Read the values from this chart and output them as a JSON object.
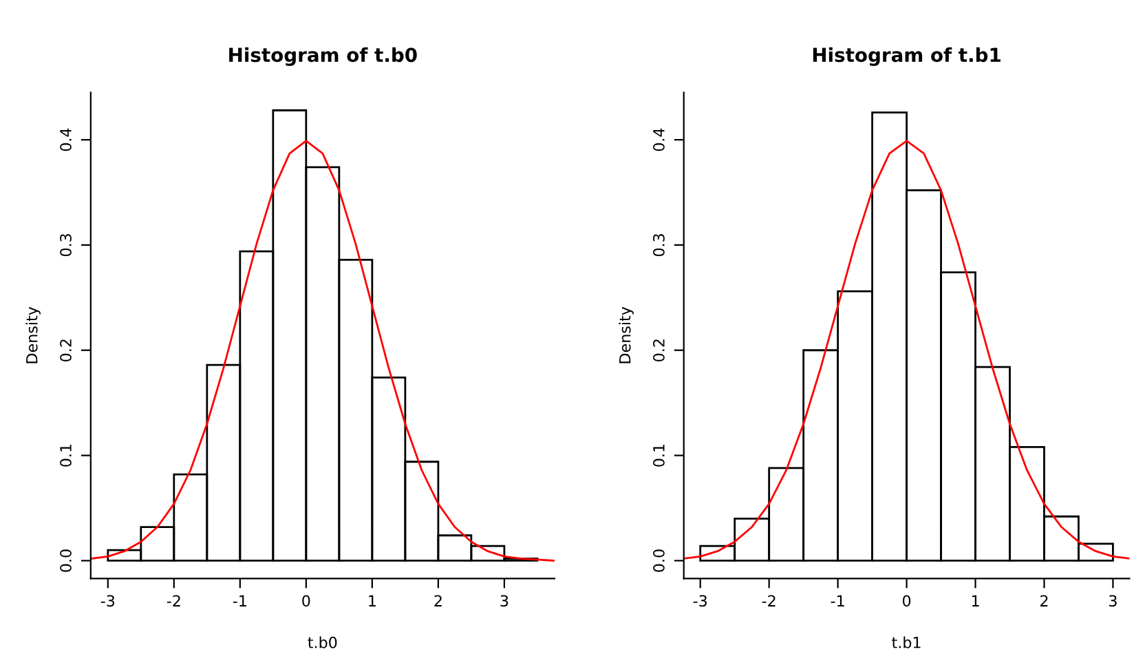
{
  "chart_data": [
    {
      "type": "histogram",
      "title": "Histogram of t.b0",
      "xlabel": "t.b0",
      "ylabel": "Density",
      "color": "#000000",
      "bins": [
        -3,
        -2.5,
        -2,
        -1.5,
        -1,
        -0.5,
        0,
        0.5,
        1,
        1.5,
        2,
        2.5,
        3,
        3.5
      ],
      "values": [
        0.01,
        0.032,
        0.082,
        0.186,
        0.294,
        0.428,
        0.374,
        0.286,
        0.174,
        0.094,
        0.024,
        0.014,
        0.002
      ],
      "xlim": [
        -3.26,
        3.76
      ],
      "ylim": [
        -0.017,
        0.445
      ],
      "xticks": [
        -3,
        -2,
        -1,
        0,
        1,
        2,
        3
      ],
      "yticks": [
        {
          "value": 0,
          "label": "0.0"
        },
        {
          "value": 0.1,
          "label": "0.1"
        },
        {
          "value": 0.2,
          "label": "0.2"
        },
        {
          "value": 0.3,
          "label": "0.3"
        },
        {
          "value": 0.4,
          "label": "0.4"
        }
      ],
      "series": [
        {
          "type": "line",
          "color": "#ff0000",
          "x": [
            -3.25,
            -3,
            -2.75,
            -2.5,
            -2.25,
            -2,
            -1.75,
            -1.5,
            -1.25,
            -1,
            -0.75,
            -0.5,
            -0.25,
            0,
            0.25,
            0.5,
            0.75,
            1,
            1.25,
            1.5,
            1.75,
            2,
            2.25,
            2.5,
            2.75,
            3,
            3.25,
            3.5,
            3.75
          ],
          "values": [
            0.002,
            0.004,
            0.009,
            0.018,
            0.032,
            0.054,
            0.086,
            0.13,
            0.183,
            0.242,
            0.301,
            0.352,
            0.387,
            0.399,
            0.387,
            0.352,
            0.301,
            0.242,
            0.183,
            0.13,
            0.086,
            0.054,
            0.032,
            0.018,
            0.009,
            0.004,
            0.002,
            0.001,
            0.0
          ]
        }
      ]
    },
    {
      "type": "histogram",
      "title": "Histogram of t.b1",
      "xlabel": "t.b1",
      "ylabel": "Density",
      "color": "#000000",
      "bins": [
        -3,
        -2.5,
        -2,
        -1.5,
        -1,
        -0.5,
        0,
        0.5,
        1,
        1.5,
        2,
        2.5,
        3
      ],
      "values": [
        0.014,
        0.04,
        0.088,
        0.2,
        0.256,
        0.426,
        0.352,
        0.274,
        0.184,
        0.108,
        0.042,
        0.016
      ],
      "xlim": [
        -3.24,
        3.24
      ],
      "ylim": [
        -0.017,
        0.445
      ],
      "xticks": [
        -3,
        -2,
        -1,
        0,
        1,
        2,
        3
      ],
      "yticks": [
        {
          "value": 0,
          "label": "0.0"
        },
        {
          "value": 0.1,
          "label": "0.1"
        },
        {
          "value": 0.2,
          "label": "0.2"
        },
        {
          "value": 0.3,
          "label": "0.3"
        },
        {
          "value": 0.4,
          "label": "0.4"
        }
      ],
      "series": [
        {
          "type": "line",
          "color": "#ff0000",
          "x": [
            -3.24,
            -3,
            -2.75,
            -2.5,
            -2.25,
            -2,
            -1.75,
            -1.5,
            -1.25,
            -1,
            -0.75,
            -0.5,
            -0.25,
            0,
            0.25,
            0.5,
            0.75,
            1,
            1.25,
            1.5,
            1.75,
            2,
            2.25,
            2.5,
            2.75,
            3,
            3.24
          ],
          "values": [
            0.002,
            0.004,
            0.009,
            0.018,
            0.032,
            0.054,
            0.086,
            0.13,
            0.183,
            0.242,
            0.301,
            0.352,
            0.387,
            0.399,
            0.387,
            0.352,
            0.301,
            0.242,
            0.183,
            0.13,
            0.086,
            0.054,
            0.032,
            0.018,
            0.009,
            0.004,
            0.002
          ]
        }
      ]
    }
  ]
}
